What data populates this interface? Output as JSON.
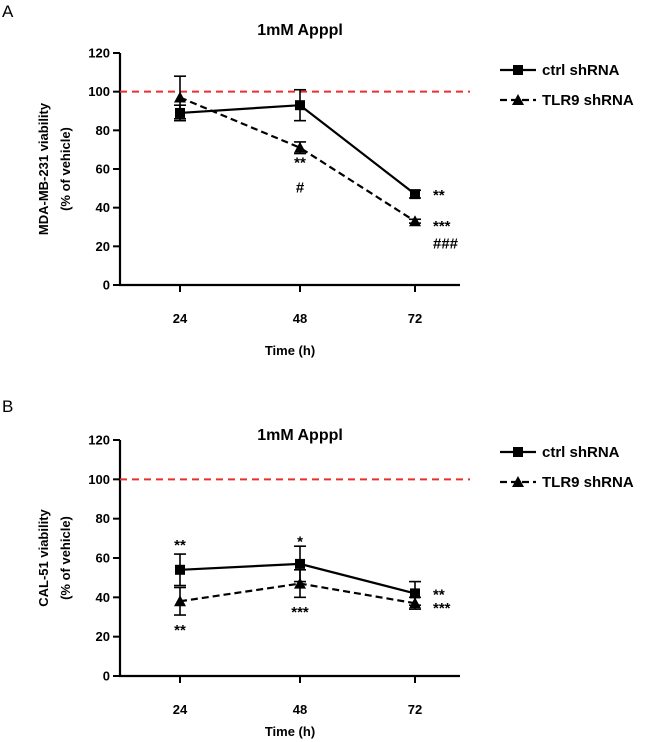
{
  "chart_data": [
    {
      "type": "line",
      "panel": "A",
      "title": "1mM Apppl",
      "xlabel": "Time (h)",
      "ylabel": [
        "MDA-MB-231 viability",
        "(% of vehicle)"
      ],
      "categories": [
        "24",
        "48",
        "72"
      ],
      "ylim": [
        0,
        120
      ],
      "yticks": [
        0,
        20,
        40,
        60,
        80,
        100,
        120
      ],
      "reference_line": {
        "value": 100,
        "color": "#e8312f",
        "style": "dashed"
      },
      "series": [
        {
          "name": "ctrl shRNA",
          "marker": "square",
          "line": "solid",
          "values": [
            89,
            93,
            47
          ],
          "errors": [
            4,
            8,
            2
          ]
        },
        {
          "name": "TLR9 shRNA",
          "marker": "triangle",
          "line": "dashed",
          "values": [
            97,
            71,
            33
          ],
          "errors": [
            11,
            3,
            1
          ]
        }
      ],
      "annotations": [
        {
          "x": "48",
          "y": 64,
          "text": "**"
        },
        {
          "x": "48",
          "y": 51,
          "text": "#"
        },
        {
          "x": "72",
          "y": 47,
          "text": "**",
          "side": "right"
        },
        {
          "x": "72",
          "y": 31,
          "text": "***",
          "side": "right"
        },
        {
          "x": "72",
          "y": 22,
          "text": "###",
          "side": "right"
        }
      ],
      "legend": "right"
    },
    {
      "type": "line",
      "panel": "B",
      "title": "1mM Apppl",
      "xlabel": "Time (h)",
      "ylabel": [
        "CAL-51 viability",
        "(% of vehicle)"
      ],
      "categories": [
        "24",
        "48",
        "72"
      ],
      "ylim": [
        0,
        120
      ],
      "yticks": [
        0,
        20,
        40,
        60,
        80,
        100,
        120
      ],
      "reference_line": {
        "value": 100,
        "color": "#e8312f",
        "style": "dashed"
      },
      "series": [
        {
          "name": "ctrl shRNA",
          "marker": "square",
          "line": "solid",
          "values": [
            54,
            57,
            42
          ],
          "errors": [
            8,
            9,
            6
          ]
        },
        {
          "name": "TLR9 shRNA",
          "marker": "triangle",
          "line": "dashed",
          "values": [
            38,
            47,
            37
          ],
          "errors": [
            7,
            7,
            3
          ]
        }
      ],
      "annotations": [
        {
          "x": "24",
          "y": 67,
          "text": "**"
        },
        {
          "x": "24",
          "y": 24,
          "text": "**"
        },
        {
          "x": "48",
          "y": 69,
          "text": "*"
        },
        {
          "x": "48",
          "y": 33,
          "text": "***"
        },
        {
          "x": "72",
          "y": 42,
          "text": "**",
          "side": "right"
        },
        {
          "x": "72",
          "y": 35,
          "text": "***",
          "side": "right"
        }
      ],
      "legend": "right"
    }
  ]
}
